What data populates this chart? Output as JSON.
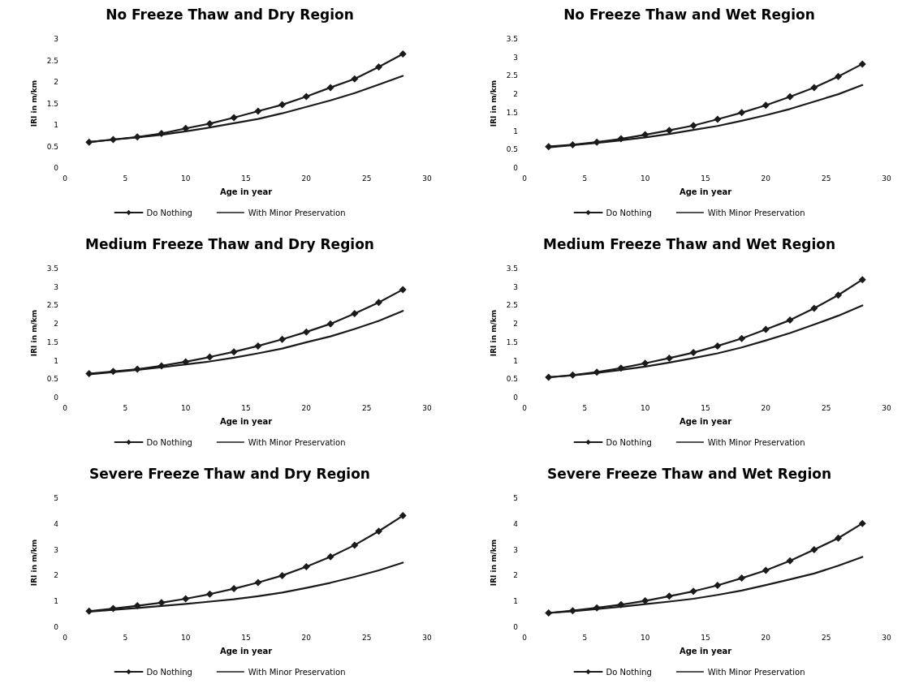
{
  "chart_data": [
    {
      "type": "line",
      "title": "No Freeze Thaw and Dry Region",
      "xlabel": "Age in year",
      "ylabel": "IRI in m/km",
      "x": [
        2,
        4,
        6,
        8,
        10,
        12,
        14,
        16,
        18,
        20,
        22,
        24,
        26,
        28
      ],
      "xlim": [
        0,
        30
      ],
      "xticks": [
        0,
        5,
        10,
        15,
        20,
        25,
        30
      ],
      "ylim": [
        0,
        3
      ],
      "yticks": [
        0,
        0.5,
        1,
        1.5,
        2,
        2.5,
        3
      ],
      "grid": false,
      "legend": "bottom",
      "series": [
        {
          "name": "Do Nothing",
          "color": "#1a1a1a",
          "marker": "diamond",
          "values": [
            0.6,
            0.66,
            0.72,
            0.8,
            0.92,
            1.03,
            1.17,
            1.32,
            1.47,
            1.66,
            1.87,
            2.07,
            2.35,
            2.65
          ]
        },
        {
          "name": "With Minor Preservation",
          "color": "#1a1a1a",
          "marker": "none",
          "values": [
            0.6,
            0.66,
            0.71,
            0.77,
            0.85,
            0.94,
            1.04,
            1.14,
            1.27,
            1.42,
            1.57,
            1.74,
            1.94,
            2.14
          ]
        }
      ]
    },
    {
      "type": "line",
      "title": "No Freeze Thaw and Wet Region",
      "xlabel": "Age in year",
      "ylabel": "IRI in m/km",
      "x": [
        2,
        4,
        6,
        8,
        10,
        12,
        14,
        16,
        18,
        20,
        22,
        24,
        26,
        28
      ],
      "xlim": [
        0,
        30
      ],
      "xticks": [
        0,
        5,
        10,
        15,
        20,
        25,
        30
      ],
      "ylim": [
        0,
        3.5
      ],
      "yticks": [
        0,
        0.5,
        1,
        1.5,
        2,
        2.5,
        3,
        3.5
      ],
      "grid": false,
      "legend": "bottom",
      "series": [
        {
          "name": "Do Nothing",
          "color": "#1a1a1a",
          "marker": "diamond",
          "values": [
            0.58,
            0.63,
            0.7,
            0.79,
            0.9,
            1.02,
            1.15,
            1.32,
            1.5,
            1.7,
            1.93,
            2.18,
            2.48,
            2.82
          ]
        },
        {
          "name": "With Minor Preservation",
          "color": "#1a1a1a",
          "marker": "none",
          "values": [
            0.56,
            0.62,
            0.68,
            0.75,
            0.83,
            0.92,
            1.03,
            1.14,
            1.28,
            1.43,
            1.6,
            1.8,
            2.0,
            2.25
          ]
        }
      ]
    },
    {
      "type": "line",
      "title": "Medium Freeze Thaw and Dry Region",
      "xlabel": "Age in year",
      "ylabel": "IRI in m/km",
      "x": [
        2,
        4,
        6,
        8,
        10,
        12,
        14,
        16,
        18,
        20,
        22,
        24,
        26,
        28
      ],
      "xlim": [
        0,
        30
      ],
      "xticks": [
        0,
        5,
        10,
        15,
        20,
        25,
        30
      ],
      "ylim": [
        0,
        3.5
      ],
      "yticks": [
        0,
        0.5,
        1,
        1.5,
        2,
        2.5,
        3,
        3.5
      ],
      "grid": false,
      "legend": "bottom",
      "series": [
        {
          "name": "Do Nothing",
          "color": "#1a1a1a",
          "marker": "diamond",
          "values": [
            0.65,
            0.71,
            0.77,
            0.86,
            0.97,
            1.1,
            1.24,
            1.4,
            1.58,
            1.78,
            2.0,
            2.28,
            2.58,
            2.93
          ]
        },
        {
          "name": "With Minor Preservation",
          "color": "#1a1a1a",
          "marker": "none",
          "values": [
            0.63,
            0.69,
            0.75,
            0.82,
            0.9,
            0.98,
            1.08,
            1.2,
            1.33,
            1.5,
            1.66,
            1.86,
            2.08,
            2.35
          ]
        }
      ]
    },
    {
      "type": "line",
      "title": "Medium Freeze Thaw and Wet Region",
      "xlabel": "Age in year",
      "ylabel": "IRI in m/km",
      "x": [
        2,
        4,
        6,
        8,
        10,
        12,
        14,
        16,
        18,
        20,
        22,
        24,
        26,
        28
      ],
      "xlim": [
        0,
        30
      ],
      "xticks": [
        0,
        5,
        10,
        15,
        20,
        25,
        30
      ],
      "ylim": [
        0,
        3.5
      ],
      "yticks": [
        0,
        0.5,
        1,
        1.5,
        2,
        2.5,
        3,
        3.5
      ],
      "grid": false,
      "legend": "bottom",
      "series": [
        {
          "name": "Do Nothing",
          "color": "#1a1a1a",
          "marker": "diamond",
          "values": [
            0.55,
            0.61,
            0.69,
            0.8,
            0.93,
            1.07,
            1.22,
            1.4,
            1.6,
            1.85,
            2.1,
            2.42,
            2.78,
            3.2
          ]
        },
        {
          "name": "With Minor Preservation",
          "color": "#1a1a1a",
          "marker": "none",
          "values": [
            0.55,
            0.6,
            0.67,
            0.75,
            0.84,
            0.95,
            1.07,
            1.2,
            1.36,
            1.55,
            1.75,
            1.98,
            2.22,
            2.5
          ]
        }
      ]
    },
    {
      "type": "line",
      "title": "Severe Freeze Thaw and Dry Region",
      "xlabel": "Age in year",
      "ylabel": "IRI in m/km",
      "x": [
        2,
        4,
        6,
        8,
        10,
        12,
        14,
        16,
        18,
        20,
        22,
        24,
        26,
        28
      ],
      "xlim": [
        0,
        30
      ],
      "xticks": [
        0,
        5,
        10,
        15,
        20,
        25,
        30
      ],
      "ylim": [
        0,
        5
      ],
      "yticks": [
        0,
        1,
        2,
        3,
        4,
        5
      ],
      "grid": false,
      "legend": "bottom",
      "series": [
        {
          "name": "Do Nothing",
          "color": "#1a1a1a",
          "marker": "diamond",
          "values": [
            0.62,
            0.72,
            0.83,
            0.95,
            1.1,
            1.28,
            1.49,
            1.73,
            2.0,
            2.34,
            2.73,
            3.18,
            3.72,
            4.32
          ]
        },
        {
          "name": "With Minor Preservation",
          "color": "#1a1a1a",
          "marker": "none",
          "values": [
            0.6,
            0.67,
            0.74,
            0.82,
            0.9,
            0.99,
            1.08,
            1.2,
            1.34,
            1.52,
            1.72,
            1.95,
            2.2,
            2.5
          ]
        }
      ]
    },
    {
      "type": "line",
      "title": "Severe Freeze Thaw and Wet Region",
      "xlabel": "Age in year",
      "ylabel": "IRI in m/km",
      "x": [
        2,
        4,
        6,
        8,
        10,
        12,
        14,
        16,
        18,
        20,
        22,
        24,
        26,
        28
      ],
      "xlim": [
        0,
        30
      ],
      "xticks": [
        0,
        5,
        10,
        15,
        20,
        25,
        30
      ],
      "ylim": [
        0,
        5
      ],
      "yticks": [
        0,
        1,
        2,
        3,
        4,
        5
      ],
      "grid": false,
      "legend": "bottom",
      "series": [
        {
          "name": "Do Nothing",
          "color": "#1a1a1a",
          "marker": "diamond",
          "values": [
            0.55,
            0.64,
            0.75,
            0.87,
            1.02,
            1.2,
            1.39,
            1.62,
            1.9,
            2.2,
            2.57,
            3.0,
            3.45,
            4.02
          ]
        },
        {
          "name": "With Minor Preservation",
          "color": "#1a1a1a",
          "marker": "none",
          "values": [
            0.55,
            0.62,
            0.7,
            0.79,
            0.89,
            0.99,
            1.1,
            1.25,
            1.42,
            1.63,
            1.85,
            2.08,
            2.38,
            2.72
          ]
        }
      ]
    }
  ]
}
